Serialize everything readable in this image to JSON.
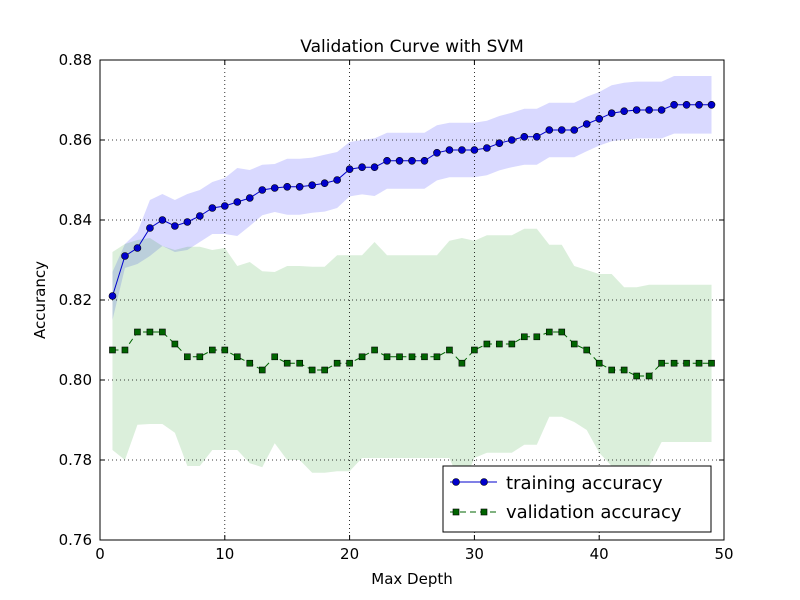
{
  "chart_data": {
    "type": "line",
    "title": "Validation Curve with SVM",
    "xlabel": "Max Depth",
    "ylabel": "Accurancy",
    "xlim": [
      0,
      50
    ],
    "ylim": [
      0.76,
      0.88
    ],
    "xticks": [
      0,
      10,
      20,
      30,
      40,
      50
    ],
    "xtick_labels": [
      "0",
      "10",
      "20",
      "30",
      "40",
      "50"
    ],
    "yticks": [
      0.76,
      0.78,
      0.8,
      0.82,
      0.84,
      0.86,
      0.88
    ],
    "ytick_labels": [
      "0.76",
      "0.78",
      "0.80",
      "0.82",
      "0.84",
      "0.86",
      "0.88"
    ],
    "grid": true,
    "legend_position": "bottom-right",
    "x": [
      1,
      2,
      3,
      4,
      5,
      6,
      7,
      8,
      9,
      10,
      11,
      12,
      13,
      14,
      15,
      16,
      17,
      18,
      19,
      20,
      21,
      22,
      23,
      24,
      25,
      26,
      27,
      28,
      29,
      30,
      31,
      32,
      33,
      34,
      35,
      36,
      37,
      38,
      39,
      40,
      41,
      42,
      43,
      44,
      45,
      46,
      47,
      48,
      49
    ],
    "series": [
      {
        "name": "training accuracy",
        "color": "#0000cc",
        "band_color": "#0000ff",
        "marker": "circle",
        "line_style": "solid",
        "values": [
          0.821,
          0.831,
          0.833,
          0.838,
          0.84,
          0.8385,
          0.8395,
          0.841,
          0.843,
          0.8435,
          0.8445,
          0.8455,
          0.8475,
          0.848,
          0.8483,
          0.8483,
          0.8487,
          0.8492,
          0.85,
          0.8527,
          0.8532,
          0.8532,
          0.8548,
          0.8548,
          0.8548,
          0.8548,
          0.8568,
          0.8575,
          0.8575,
          0.8575,
          0.858,
          0.8592,
          0.86,
          0.8608,
          0.8608,
          0.8625,
          0.8625,
          0.8625,
          0.864,
          0.8653,
          0.8667,
          0.8672,
          0.8675,
          0.8675,
          0.8675,
          0.8688,
          0.8688,
          0.8688,
          0.8688
        ],
        "upper": [
          0.827,
          0.834,
          0.837,
          0.845,
          0.8465,
          0.845,
          0.8465,
          0.8475,
          0.8495,
          0.8505,
          0.853,
          0.8525,
          0.8538,
          0.854,
          0.8553,
          0.8553,
          0.8556,
          0.8563,
          0.857,
          0.8595,
          0.86,
          0.8604,
          0.8618,
          0.8618,
          0.8618,
          0.8618,
          0.8637,
          0.8643,
          0.8643,
          0.8643,
          0.8648,
          0.866,
          0.8668,
          0.8678,
          0.8678,
          0.8693,
          0.8693,
          0.8693,
          0.8708,
          0.872,
          0.8737,
          0.8743,
          0.8746,
          0.8746,
          0.8746,
          0.876,
          0.876,
          0.876,
          0.876
        ],
        "lower": [
          0.815,
          0.828,
          0.829,
          0.831,
          0.8335,
          0.832,
          0.8325,
          0.8345,
          0.8365,
          0.8365,
          0.836,
          0.8385,
          0.8412,
          0.842,
          0.8413,
          0.8413,
          0.8418,
          0.8421,
          0.843,
          0.8459,
          0.8464,
          0.846,
          0.8478,
          0.8478,
          0.8478,
          0.8478,
          0.8499,
          0.8507,
          0.8507,
          0.8507,
          0.8512,
          0.8524,
          0.8532,
          0.8538,
          0.8538,
          0.8557,
          0.8557,
          0.8557,
          0.8572,
          0.8586,
          0.8597,
          0.8601,
          0.8604,
          0.8604,
          0.8604,
          0.8616,
          0.8616,
          0.8616,
          0.8616
        ]
      },
      {
        "name": "validation accuracy",
        "color": "#006400",
        "band_color": "#2ca02c",
        "marker": "square",
        "line_style": "dashed",
        "values": [
          0.8075,
          0.8075,
          0.812,
          0.812,
          0.812,
          0.809,
          0.8058,
          0.8058,
          0.8075,
          0.8075,
          0.8058,
          0.8042,
          0.8025,
          0.8058,
          0.8042,
          0.8042,
          0.8025,
          0.8025,
          0.8042,
          0.8042,
          0.8058,
          0.8075,
          0.8058,
          0.8058,
          0.8058,
          0.8058,
          0.8058,
          0.8075,
          0.8042,
          0.8075,
          0.809,
          0.809,
          0.809,
          0.8108,
          0.8108,
          0.812,
          0.812,
          0.809,
          0.8075,
          0.8042,
          0.8025,
          0.8025,
          0.801,
          0.801,
          0.8042,
          0.8042,
          0.8042,
          0.8042,
          0.8042
        ],
        "upper": [
          0.832,
          0.834,
          0.835,
          0.8355,
          0.8335,
          0.8325,
          0.8333,
          0.8333,
          0.8325,
          0.833,
          0.8285,
          0.8295,
          0.8272,
          0.827,
          0.8285,
          0.8285,
          0.8283,
          0.8283,
          0.8312,
          0.8312,
          0.8312,
          0.8345,
          0.8312,
          0.8312,
          0.8312,
          0.8312,
          0.8312,
          0.8348,
          0.8355,
          0.8348,
          0.8362,
          0.8362,
          0.8362,
          0.8378,
          0.8378,
          0.8338,
          0.8338,
          0.8285,
          0.8275,
          0.8265,
          0.8265,
          0.8232,
          0.8232,
          0.8238,
          0.8238,
          0.8238,
          0.8238,
          0.8238,
          0.8238
        ],
        "lower": [
          0.7825,
          0.78,
          0.7888,
          0.789,
          0.789,
          0.7868,
          0.7785,
          0.7785,
          0.7825,
          0.7825,
          0.7825,
          0.7792,
          0.7782,
          0.7842,
          0.78,
          0.78,
          0.7768,
          0.7768,
          0.7772,
          0.7772,
          0.7805,
          0.7805,
          0.7805,
          0.7805,
          0.7805,
          0.7805,
          0.7805,
          0.7805,
          0.7732,
          0.7805,
          0.7818,
          0.7818,
          0.7818,
          0.7838,
          0.7838,
          0.7908,
          0.7908,
          0.7895,
          0.7875,
          0.7818,
          0.7785,
          0.7785,
          0.7785,
          0.7785,
          0.7845,
          0.7845,
          0.7845,
          0.7845,
          0.7845
        ]
      }
    ]
  }
}
